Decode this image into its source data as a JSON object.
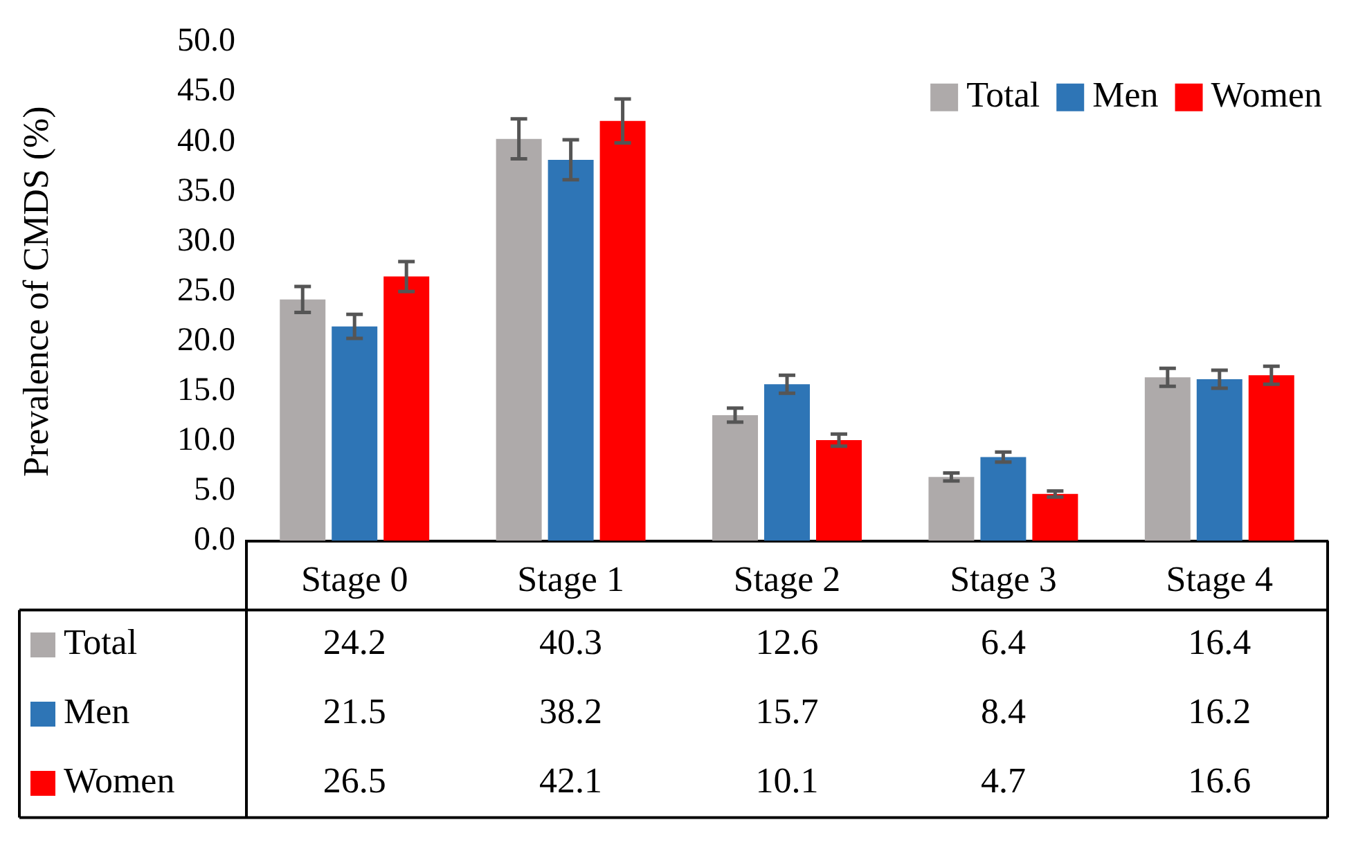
{
  "chart_data": {
    "type": "bar",
    "ylabel": "Prevalence of CMDS (%)",
    "categories": [
      "Stage 0",
      "Stage 1",
      "Stage 2",
      "Stage 3",
      "Stage 4"
    ],
    "series": [
      {
        "name": "Total",
        "color": "#aeaaaa",
        "values": [
          24.2,
          40.3,
          12.6,
          6.4,
          16.4
        ],
        "errors": [
          1.3,
          2.0,
          0.7,
          0.4,
          0.9
        ]
      },
      {
        "name": "Men",
        "color": "#2e75b6",
        "values": [
          21.5,
          38.2,
          15.7,
          8.4,
          16.2
        ],
        "errors": [
          1.2,
          2.0,
          0.9,
          0.5,
          0.9
        ]
      },
      {
        "name": "Women",
        "color": "#ff0000",
        "values": [
          26.5,
          42.1,
          10.1,
          4.7,
          16.6
        ],
        "errors": [
          1.5,
          2.2,
          0.6,
          0.3,
          0.9
        ]
      }
    ],
    "ylim": [
      0,
      50
    ],
    "yticks": [
      {
        "value": 0,
        "label": "0.0"
      },
      {
        "value": 5,
        "label": "5.0"
      },
      {
        "value": 10,
        "label": "10.0"
      },
      {
        "value": 15,
        "label": "15.0"
      },
      {
        "value": 20,
        "label": "20.0"
      },
      {
        "value": 25,
        "label": "25.0"
      },
      {
        "value": 30,
        "label": "30.0"
      },
      {
        "value": 35,
        "label": "35.0"
      },
      {
        "value": 40,
        "label": "40.0"
      },
      {
        "value": 45,
        "label": "45.0"
      },
      {
        "value": 50,
        "label": "50.0"
      }
    ],
    "grid": false,
    "legend": "top right",
    "data_labels": true
  }
}
